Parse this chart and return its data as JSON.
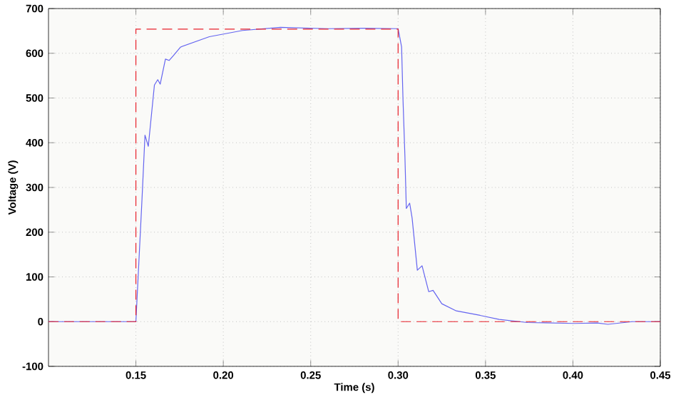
{
  "chart_data": {
    "type": "line",
    "xlabel": "Time (s)",
    "ylabel": "Voltage (V)",
    "xlim": [
      0.1,
      0.45
    ],
    "ylim": [
      -100,
      700
    ],
    "xticks": [
      0.15,
      {
        "value": 0.2,
        "label": "0.20"
      },
      0.25,
      {
        "value": 0.3,
        "label": "0.30"
      },
      0.35,
      {
        "value": 0.4,
        "label": "0.40"
      },
      0.45
    ],
    "yticks": [
      -100,
      0,
      100,
      200,
      300,
      400,
      500,
      600,
      700
    ],
    "grid": true,
    "marker": "none",
    "series": [
      {
        "color": "#6464f0",
        "line_style": "solid",
        "x": [
          0.1,
          0.15,
          0.1535,
          0.1552,
          0.1571,
          0.1606,
          0.1625,
          0.1639,
          0.1669,
          0.169,
          0.1715,
          0.1756,
          0.192,
          0.211,
          0.2327,
          0.26,
          0.28,
          0.3,
          0.302,
          0.3028,
          0.3039,
          0.3047,
          0.3066,
          0.308,
          0.311,
          0.3137,
          0.3175,
          0.32,
          0.325,
          0.3333,
          0.3469,
          0.3578,
          0.374,
          0.401,
          0.414,
          0.42,
          0.434,
          0.45
        ],
        "values": [
          0,
          0,
          274,
          417,
          392,
          529,
          541,
          531,
          587,
          584,
          595,
          614,
          637,
          651,
          658,
          655,
          656,
          655,
          614,
          497,
          369,
          253,
          265,
          232,
          115,
          125,
          67,
          70,
          40,
          24,
          14,
          5,
          -2,
          -4,
          -3,
          -6,
          0,
          0
        ]
      },
      {
        "color": "#e8202a",
        "line_style": "dashed",
        "x": [
          0.1,
          0.15,
          0.15,
          0.3,
          0.3,
          0.45
        ],
        "values": [
          0,
          0,
          654,
          654,
          0,
          0
        ]
      }
    ]
  }
}
